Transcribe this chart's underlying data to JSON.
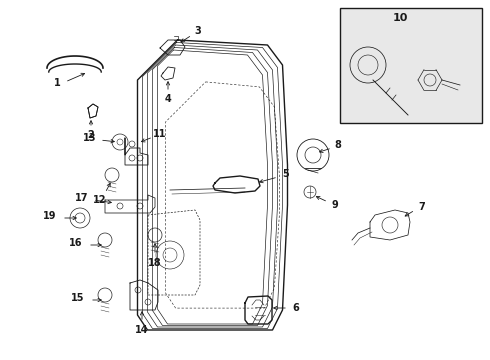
{
  "background_color": "#ffffff",
  "line_color": "#1a1a1a",
  "light_gray": "#d0d0d0",
  "box10_bg": "#e8e8e8",
  "figsize": [
    4.9,
    3.6
  ],
  "dpi": 100
}
